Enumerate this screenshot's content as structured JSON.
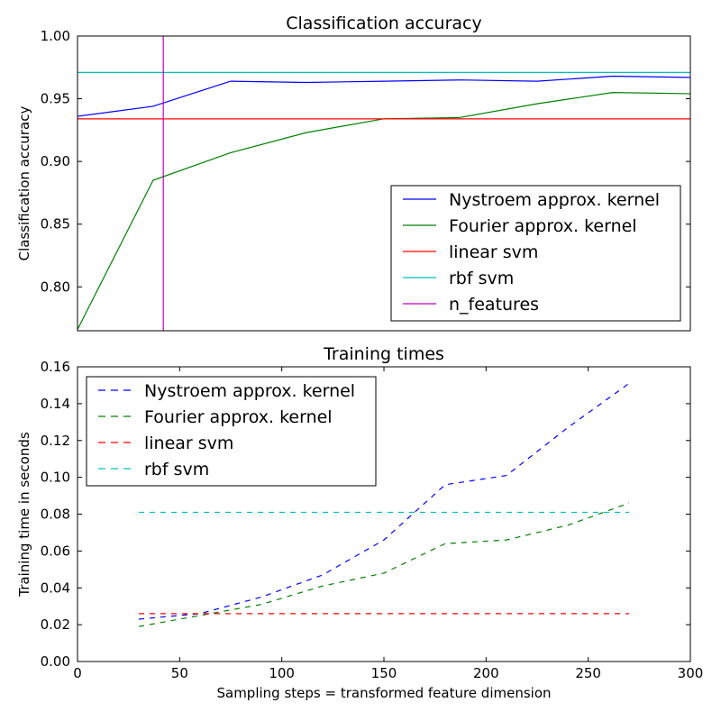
{
  "chart_data": [
    {
      "type": "line",
      "title": "Classification accuracy",
      "xlabel": "",
      "ylabel": "Classification accuracy",
      "xlim": [
        0,
        300
      ],
      "ylim": [
        0.765,
        1.0
      ],
      "y_ticks": [
        0.8,
        0.85,
        0.9,
        0.95,
        1.0
      ],
      "y_tick_labels": [
        "0.80",
        "0.85",
        "0.90",
        "0.95",
        "1.00"
      ],
      "x_ticks_visible": false,
      "grid": false,
      "legend_position": "lower-right",
      "series": [
        {
          "name": "Nystroem approx. kernel",
          "color": "#0000ff",
          "style": "solid",
          "x": [
            0,
            37,
            75,
            112,
            150,
            187,
            225,
            262,
            300
          ],
          "y": [
            0.936,
            0.944,
            0.964,
            0.963,
            0.964,
            0.965,
            0.964,
            0.968,
            0.967
          ]
        },
        {
          "name": "Fourier approx. kernel",
          "color": "#008000",
          "style": "solid",
          "x": [
            0,
            37,
            75,
            112,
            150,
            187,
            225,
            262,
            300
          ],
          "y": [
            0.766,
            0.885,
            0.907,
            0.923,
            0.934,
            0.935,
            0.946,
            0.955,
            0.954
          ]
        },
        {
          "name": "linear svm",
          "color": "#ff0000",
          "style": "solid",
          "x": [
            0,
            300
          ],
          "y": [
            0.934,
            0.934
          ]
        },
        {
          "name": "rbf svm",
          "color": "#00bfbf",
          "style": "solid",
          "x": [
            0,
            300
          ],
          "y": [
            0.971,
            0.971
          ]
        },
        {
          "name": "n_features",
          "color": "#bf00bf",
          "style": "solid",
          "x": [
            42,
            42
          ],
          "y": [
            0.765,
            1.0
          ]
        }
      ]
    },
    {
      "type": "line",
      "title": "Training times",
      "xlabel": "Sampling steps = transformed feature dimension",
      "ylabel": "Training time in seconds",
      "xlim": [
        0,
        300
      ],
      "ylim": [
        0,
        0.16
      ],
      "x_ticks": [
        0,
        50,
        100,
        150,
        200,
        250,
        300
      ],
      "x_tick_labels": [
        "0",
        "50",
        "100",
        "150",
        "200",
        "250",
        "300"
      ],
      "y_ticks": [
        0,
        0.02,
        0.04,
        0.06,
        0.08,
        0.1,
        0.12,
        0.14,
        0.16
      ],
      "y_tick_labels": [
        "0.00",
        "0.02",
        "0.04",
        "0.06",
        "0.08",
        "0.10",
        "0.12",
        "0.14",
        "0.16"
      ],
      "grid": false,
      "legend_position": "upper-left",
      "series": [
        {
          "name": "Nystroem approx. kernel",
          "color": "#0000ff",
          "style": "dashed",
          "x": [
            30,
            60,
            90,
            120,
            150,
            180,
            210,
            240,
            270
          ],
          "y": [
            0.023,
            0.026,
            0.035,
            0.047,
            0.066,
            0.096,
            0.101,
            0.127,
            0.151
          ]
        },
        {
          "name": "Fourier approx. kernel",
          "color": "#008000",
          "style": "dashed",
          "x": [
            30,
            60,
            90,
            120,
            150,
            180,
            210,
            240,
            270
          ],
          "y": [
            0.019,
            0.025,
            0.031,
            0.041,
            0.048,
            0.064,
            0.066,
            0.074,
            0.086
          ]
        },
        {
          "name": "linear svm",
          "color": "#ff0000",
          "style": "dashed",
          "x": [
            30,
            270
          ],
          "y": [
            0.026,
            0.026
          ]
        },
        {
          "name": "rbf svm",
          "color": "#00bfbf",
          "style": "dashed",
          "x": [
            30,
            270
          ],
          "y": [
            0.081,
            0.081
          ]
        }
      ]
    }
  ]
}
